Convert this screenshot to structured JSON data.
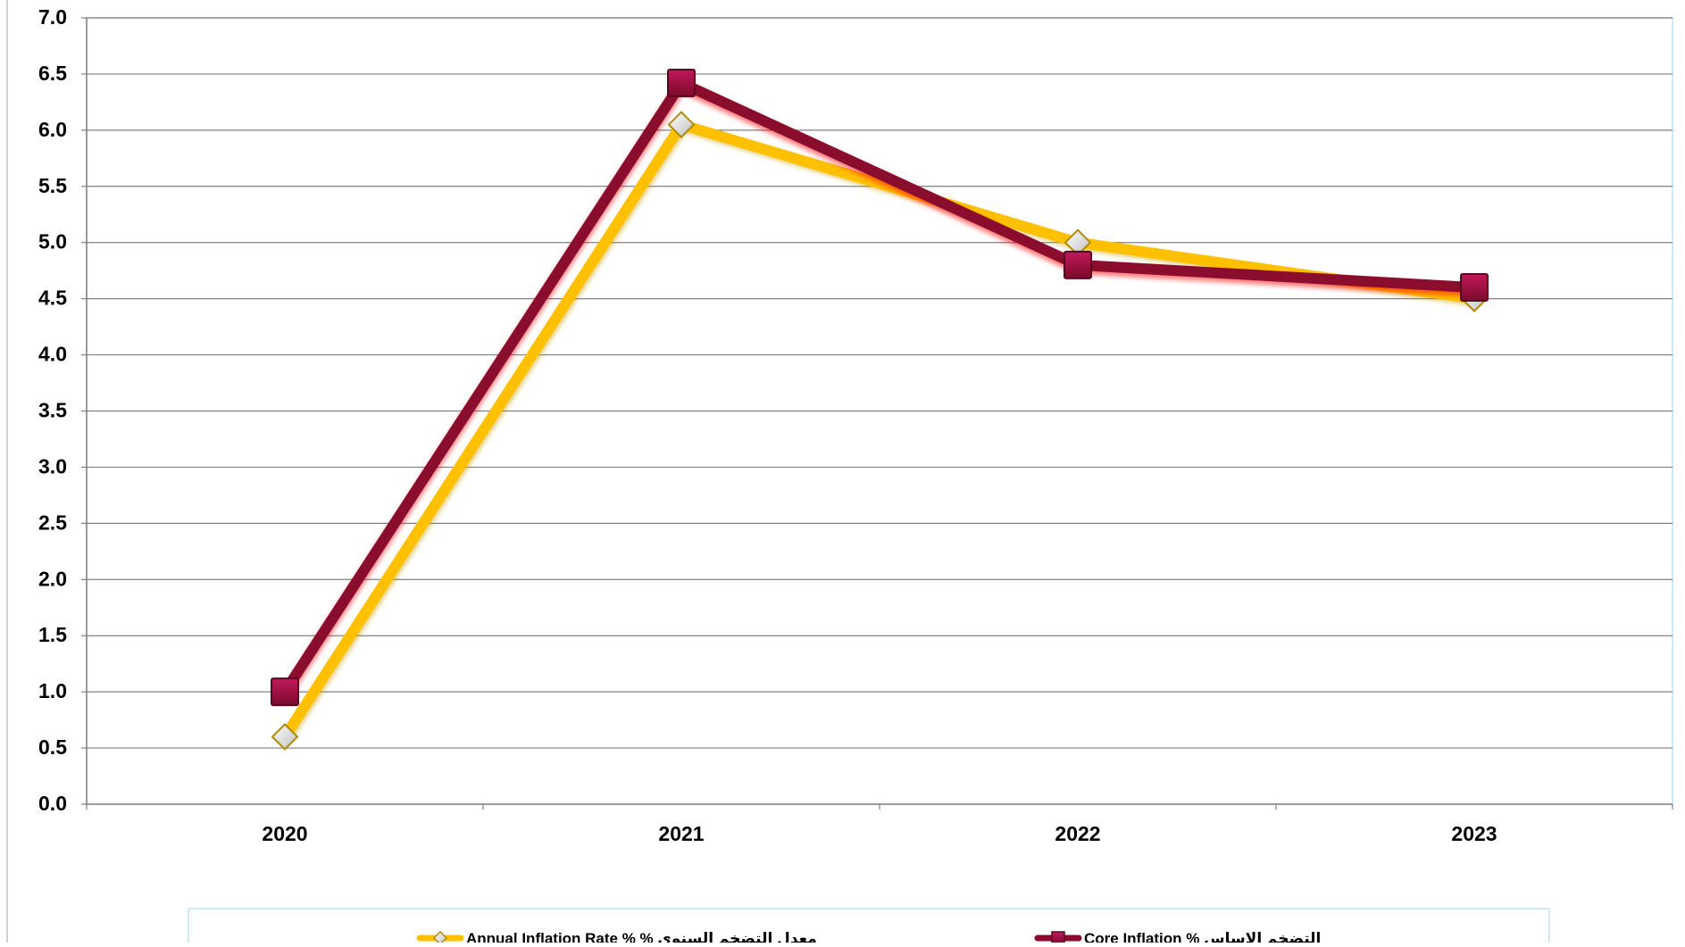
{
  "chart_data": {
    "type": "line",
    "categories": [
      "2020",
      "2021",
      "2022",
      "2023"
    ],
    "ylim": [
      0,
      7
    ],
    "yticks": [
      "0.0",
      "0.5",
      "1.0",
      "1.5",
      "2.0",
      "2.5",
      "3.0",
      "3.5",
      "4.0",
      "4.5",
      "5.0",
      "5.5",
      "6.0",
      "6.5",
      "7.0"
    ],
    "grid": true,
    "legend_position": "bottom",
    "series": [
      {
        "name": "Annual Inflation Rate %  % معدل التضخم السنوي",
        "values": [
          0.6,
          6.05,
          5.0,
          4.5
        ],
        "color": "#FFC000",
        "marker": "diamond"
      },
      {
        "name": "Core Inflation   % التضخم الاساس",
        "values": [
          1.0,
          6.42,
          4.8,
          4.6
        ],
        "color": "#8B0A2E",
        "marker": "square"
      }
    ],
    "colors": {
      "grid": "#808080",
      "plot_border": "#BDE3F2",
      "legend_border": "#BDE3F2",
      "axis": "#808080"
    }
  }
}
